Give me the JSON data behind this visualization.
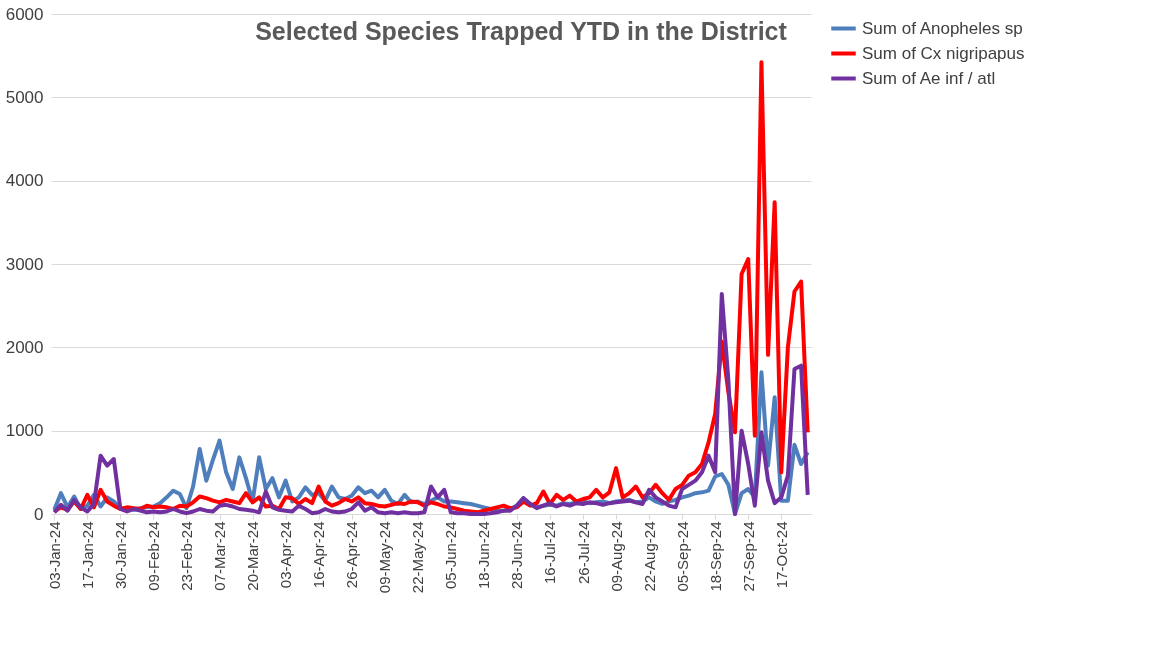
{
  "chart_data": {
    "type": "line",
    "title": "Selected Species Trapped YTD in the District",
    "categories": [
      "03-Jan-24",
      null,
      null,
      null,
      null,
      "17-Jan-24",
      null,
      null,
      null,
      null,
      "30-Jan-24",
      null,
      null,
      null,
      null,
      "09-Feb-24",
      null,
      null,
      null,
      null,
      "23-Feb-24",
      null,
      null,
      null,
      null,
      "07-Mar-24",
      null,
      null,
      null,
      null,
      "20-Mar-24",
      null,
      null,
      null,
      null,
      "03-Apr-24",
      null,
      null,
      null,
      null,
      "16-Apr-24",
      null,
      null,
      null,
      null,
      "26-Apr-24",
      null,
      null,
      null,
      null,
      "09-May-24",
      null,
      null,
      null,
      null,
      "22-May-24",
      null,
      null,
      null,
      null,
      "05-Jun-24",
      null,
      null,
      null,
      null,
      "18-Jun-24",
      null,
      null,
      null,
      null,
      "28-Jun-24",
      null,
      null,
      null,
      null,
      "16-Jul-24",
      null,
      null,
      null,
      null,
      "26-Jul-24",
      null,
      null,
      null,
      null,
      "09-Aug-24",
      null,
      null,
      null,
      null,
      "22-Aug-24",
      null,
      null,
      null,
      null,
      "05-Sep-24",
      null,
      null,
      null,
      null,
      "18-Sep-24",
      null,
      null,
      null,
      null,
      "27-Sep-24",
      null,
      null,
      null,
      null,
      "17-Oct-24",
      null,
      null,
      null,
      null
    ],
    "series": [
      {
        "name": "Sum of Anopheles sp",
        "color": "#4e7fbc",
        "values": [
          50,
          250,
          80,
          210,
          60,
          100,
          230,
          90,
          200,
          150,
          70,
          60,
          50,
          70,
          80,
          90,
          130,
          200,
          280,
          240,
          70,
          330,
          780,
          400,
          650,
          880,
          500,
          300,
          680,
          430,
          150,
          680,
          300,
          430,
          200,
          400,
          150,
          200,
          320,
          230,
          250,
          160,
          330,
          200,
          180,
          220,
          320,
          250,
          280,
          200,
          290,
          160,
          120,
          230,
          140,
          150,
          120,
          160,
          200,
          150,
          150,
          140,
          130,
          120,
          100,
          80,
          60,
          40,
          40,
          60,
          100,
          190,
          120,
          80,
          100,
          110,
          100,
          130,
          120,
          140,
          150,
          130,
          140,
          150,
          130,
          150,
          160,
          170,
          140,
          150,
          200,
          150,
          120,
          150,
          170,
          200,
          220,
          250,
          260,
          280,
          450,
          480,
          350,
          0,
          250,
          300,
          200,
          1700,
          580,
          1400,
          160,
          160,
          830,
          600,
          740
        ]
      },
      {
        "name": "Sum of Cx nigripapus",
        "color": "#ff0000",
        "values": [
          30,
          80,
          50,
          150,
          60,
          230,
          80,
          290,
          150,
          100,
          60,
          80,
          70,
          60,
          100,
          80,
          90,
          80,
          60,
          100,
          90,
          140,
          210,
          190,
          160,
          140,
          170,
          150,
          130,
          250,
          140,
          200,
          90,
          100,
          60,
          200,
          190,
          120,
          180,
          130,
          330,
          150,
          100,
          130,
          180,
          150,
          200,
          130,
          120,
          100,
          90,
          110,
          130,
          120,
          150,
          140,
          100,
          140,
          120,
          90,
          80,
          60,
          40,
          30,
          20,
          40,
          60,
          80,
          100,
          70,
          80,
          150,
          100,
          130,
          270,
          120,
          230,
          170,
          220,
          150,
          180,
          200,
          290,
          200,
          260,
          550,
          200,
          250,
          330,
          200,
          250,
          350,
          250,
          170,
          300,
          350,
          460,
          500,
          600,
          860,
          1200,
          2070,
          1460,
          980,
          2880,
          3060,
          940,
          5420,
          1910,
          3740,
          500,
          2000,
          2670,
          2790,
          980
        ]
      },
      {
        "name": "Sum of Ae inf / atl",
        "color": "#7030a0",
        "values": [
          20,
          110,
          40,
          170,
          80,
          30,
          120,
          700,
          580,
          660,
          60,
          30,
          60,
          40,
          20,
          30,
          20,
          30,
          60,
          30,
          10,
          30,
          60,
          40,
          30,
          100,
          110,
          90,
          60,
          50,
          40,
          20,
          270,
          80,
          50,
          40,
          30,
          100,
          60,
          10,
          20,
          60,
          30,
          20,
          30,
          60,
          140,
          40,
          80,
          20,
          10,
          20,
          10,
          20,
          10,
          10,
          20,
          330,
          200,
          290,
          20,
          10,
          10,
          0,
          0,
          0,
          10,
          20,
          40,
          40,
          100,
          190,
          120,
          70,
          100,
          130,
          90,
          120,
          100,
          130,
          120,
          140,
          130,
          110,
          130,
          140,
          150,
          160,
          140,
          120,
          290,
          200,
          150,
          100,
          80,
          300,
          350,
          400,
          500,
          700,
          500,
          2640,
          1600,
          0,
          1000,
          600,
          100,
          980,
          400,
          130,
          200,
          460,
          1740,
          1780,
          230
        ]
      }
    ],
    "ylim": [
      0,
      6000
    ],
    "yticks": [
      0,
      1000,
      2000,
      3000,
      4000,
      5000,
      6000
    ],
    "grid": "y",
    "legend": "right",
    "marker": "none",
    "line_style": "solid"
  }
}
